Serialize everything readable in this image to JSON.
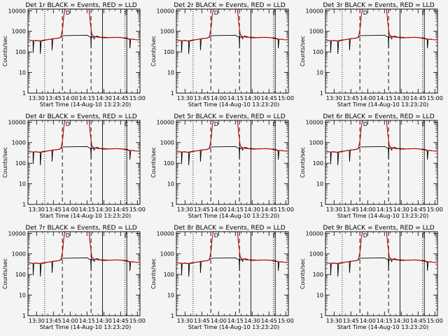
{
  "figure": {
    "xlabel": "Start Time (14-Aug-10 13:23:20)",
    "ylabel": "Counts/sec",
    "title_suffix": "BLACK = Events, RED = LLD"
  },
  "colors": {
    "background": "#f4f4f4",
    "events": "#000000",
    "lld": "#cc0000"
  },
  "chart_data": {
    "type": "line",
    "layout": "3x3 grid of panels",
    "panel_titles": [
      "Det 1r",
      "Det 2r",
      "Det 3r",
      "Det 4r",
      "Det 5r",
      "Det 6r",
      "Det 7r",
      "Det 8r",
      "Det 9r"
    ],
    "x_unit": "minutes after 13:23:20 on 14-Aug-10",
    "xlim": [
      -1,
      99
    ],
    "x_ticks": [
      6.67,
      21.67,
      36.67,
      51.67,
      66.67,
      81.67,
      96.67
    ],
    "x_tick_labels": [
      "13:30",
      "13:45",
      "14:00",
      "14:15",
      "14:30",
      "14:45",
      "15:00"
    ],
    "y_scale": "log",
    "ylim": [
      1,
      12000
    ],
    "y_ticks": [
      1,
      10,
      100,
      1000,
      10000
    ],
    "y_tick_labels": [
      "1",
      "10",
      "100",
      "1000",
      "10000"
    ],
    "markers": [
      {
        "x": 13.9,
        "style": "dotted"
      },
      {
        "x": 29.7,
        "style": "dashed"
      },
      {
        "x": 55.3,
        "style": "dashed"
      },
      {
        "x": 65.5,
        "style": "solid"
      },
      {
        "x": 85.5,
        "style": "dotted"
      },
      {
        "x": 87.2,
        "style": "solid"
      }
    ],
    "annotations": [
      {
        "text": "D",
        "x": 34.5
      },
      {
        "text": "E",
        "x": 86.6
      }
    ],
    "series": [
      {
        "name": "Events",
        "color": "black",
        "x": [
          0,
          2,
          3.5,
          3.6,
          4.2,
          6,
          9.9,
          10,
          10.8,
          11,
          14,
          17,
          20.3,
          20.5,
          21.1,
          21.3,
          23,
          26,
          28.5,
          29.2,
          29.8,
          52,
          53.5,
          55,
          55.4,
          55.5,
          55.6,
          57,
          58.2,
          58.5,
          60,
          62,
          64,
          66,
          70,
          74,
          78,
          82,
          85,
          88,
          89.8,
          90,
          90.6,
          91,
          94
        ],
        "y": [
          355,
          360,
          358,
          90,
          350,
          365,
          330,
          80,
          340,
          360,
          380,
          395,
          430,
          120,
          420,
          445,
          450,
          470,
          520,
          560,
          620,
          650,
          560,
          540,
          150,
          700,
          480,
          560,
          430,
          510,
          590,
          560,
          500,
          480,
          490,
          510,
          500,
          495,
          480,
          470,
          380,
          150,
          400,
          420,
          410
        ]
      },
      {
        "name": "LLD",
        "color": "red",
        "x": [
          0,
          4,
          8,
          12,
          16,
          20,
          24,
          27,
          28.5,
          30,
          31,
          32,
          53.5,
          54.5,
          56,
          58,
          62,
          66,
          70,
          74,
          78,
          82,
          86,
          90,
          94,
          98
        ],
        "y": [
          360,
          355,
          345,
          350,
          390,
          420,
          450,
          470,
          550,
          1500,
          6000,
          12000,
          12000,
          3000,
          700,
          560,
          510,
          520,
          500,
          495,
          510,
          500,
          450,
          420,
          400,
          380
        ]
      }
    ]
  }
}
